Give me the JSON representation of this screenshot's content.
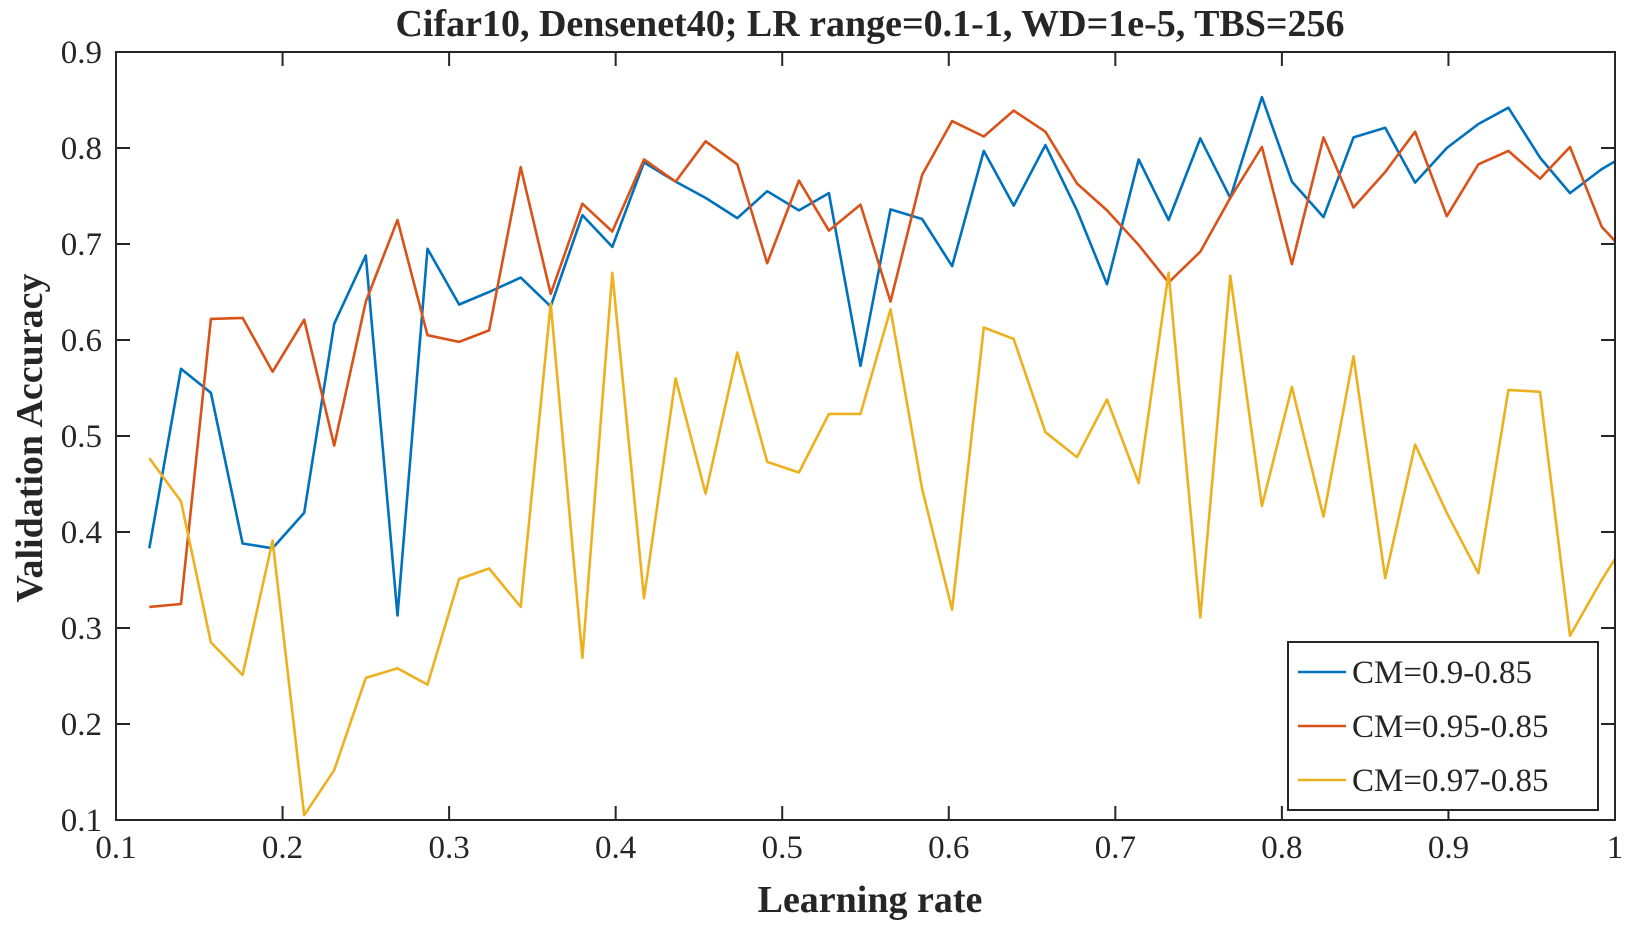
{
  "chart_data": {
    "type": "line",
    "title": "Cifar10, Densenet40; LR range=0.1-1,  WD=1e-5, TBS=256",
    "xlabel": "Learning rate",
    "ylabel": "Validation Accuracy",
    "xlim": [
      0.1,
      1
    ],
    "ylim": [
      0.1,
      0.9
    ],
    "xticks": [
      0.1,
      0.2,
      0.3,
      0.4,
      0.5,
      0.6,
      0.7,
      0.8,
      0.9,
      1
    ],
    "xtick_labels": [
      "0.1",
      "0.2",
      "0.3",
      "0.4",
      "0.5",
      "0.6",
      "0.7",
      "0.8",
      "0.9",
      "1"
    ],
    "yticks": [
      0.1,
      0.2,
      0.3,
      0.4,
      0.5,
      0.6,
      0.7,
      0.8,
      0.9
    ],
    "ytick_labels": [
      "0.1",
      "0.2",
      "0.3",
      "0.4",
      "0.5",
      "0.6",
      "0.7",
      "0.8",
      "0.9"
    ],
    "grid": false,
    "legend_position": "bottom-right",
    "x": [
      0.12,
      0.139,
      0.157,
      0.176,
      0.194,
      0.213,
      0.231,
      0.25,
      0.269,
      0.287,
      0.306,
      0.324,
      0.343,
      0.361,
      0.38,
      0.398,
      0.417,
      0.436,
      0.454,
      0.473,
      0.491,
      0.51,
      0.528,
      0.547,
      0.565,
      0.584,
      0.602,
      0.621,
      0.639,
      0.658,
      0.677,
      0.695,
      0.714,
      0.732,
      0.751,
      0.769,
      0.788,
      0.806,
      0.825,
      0.843,
      0.862,
      0.88,
      0.899,
      0.918,
      0.936,
      0.955,
      0.973,
      0.992,
      1.0
    ],
    "series": [
      {
        "name": "CM=0.9-0.85",
        "color": "#0072BD",
        "values": [
          0.383,
          0.57,
          0.545,
          0.388,
          0.383,
          0.42,
          0.617,
          0.688,
          0.313,
          0.695,
          0.637,
          0.65,
          0.665,
          0.635,
          0.73,
          0.697,
          0.785,
          0.765,
          0.748,
          0.727,
          0.755,
          0.735,
          0.753,
          0.573,
          0.736,
          0.726,
          0.677,
          0.797,
          0.74,
          0.803,
          0.735,
          0.658,
          0.788,
          0.725,
          0.81,
          0.748,
          0.853,
          0.765,
          0.728,
          0.811,
          0.821,
          0.764,
          0.8,
          0.825,
          0.842,
          0.79,
          0.753,
          0.778,
          0.786
        ]
      },
      {
        "name": "CM=0.95-0.85",
        "color": "#D95319",
        "values": [
          0.322,
          0.325,
          0.622,
          0.623,
          0.567,
          0.621,
          0.49,
          0.64,
          0.725,
          0.605,
          0.598,
          0.61,
          0.78,
          0.648,
          0.742,
          0.713,
          0.788,
          0.765,
          0.807,
          0.783,
          0.68,
          0.766,
          0.714,
          0.741,
          0.64,
          0.772,
          0.828,
          0.812,
          0.839,
          0.817,
          0.763,
          0.735,
          0.699,
          0.66,
          0.692,
          0.748,
          0.801,
          0.679,
          0.811,
          0.738,
          0.775,
          0.817,
          0.729,
          0.783,
          0.797,
          0.768,
          0.801,
          0.718,
          0.703
        ]
      },
      {
        "name": "CM=0.97-0.85",
        "color": "#EDB120",
        "values": [
          0.477,
          0.432,
          0.285,
          0.251,
          0.391,
          0.105,
          0.152,
          0.248,
          0.258,
          0.241,
          0.351,
          0.362,
          0.322,
          0.638,
          0.269,
          0.67,
          0.331,
          0.56,
          0.44,
          0.587,
          0.473,
          0.462,
          0.523,
          0.523,
          0.632,
          0.445,
          0.319,
          0.613,
          0.601,
          0.504,
          0.478,
          0.538,
          0.451,
          0.67,
          0.311,
          0.667,
          0.427,
          0.551,
          0.416,
          0.583,
          0.352,
          0.491,
          0.42,
          0.357,
          0.548,
          0.546,
          0.292,
          0.35,
          0.372
        ]
      }
    ]
  }
}
